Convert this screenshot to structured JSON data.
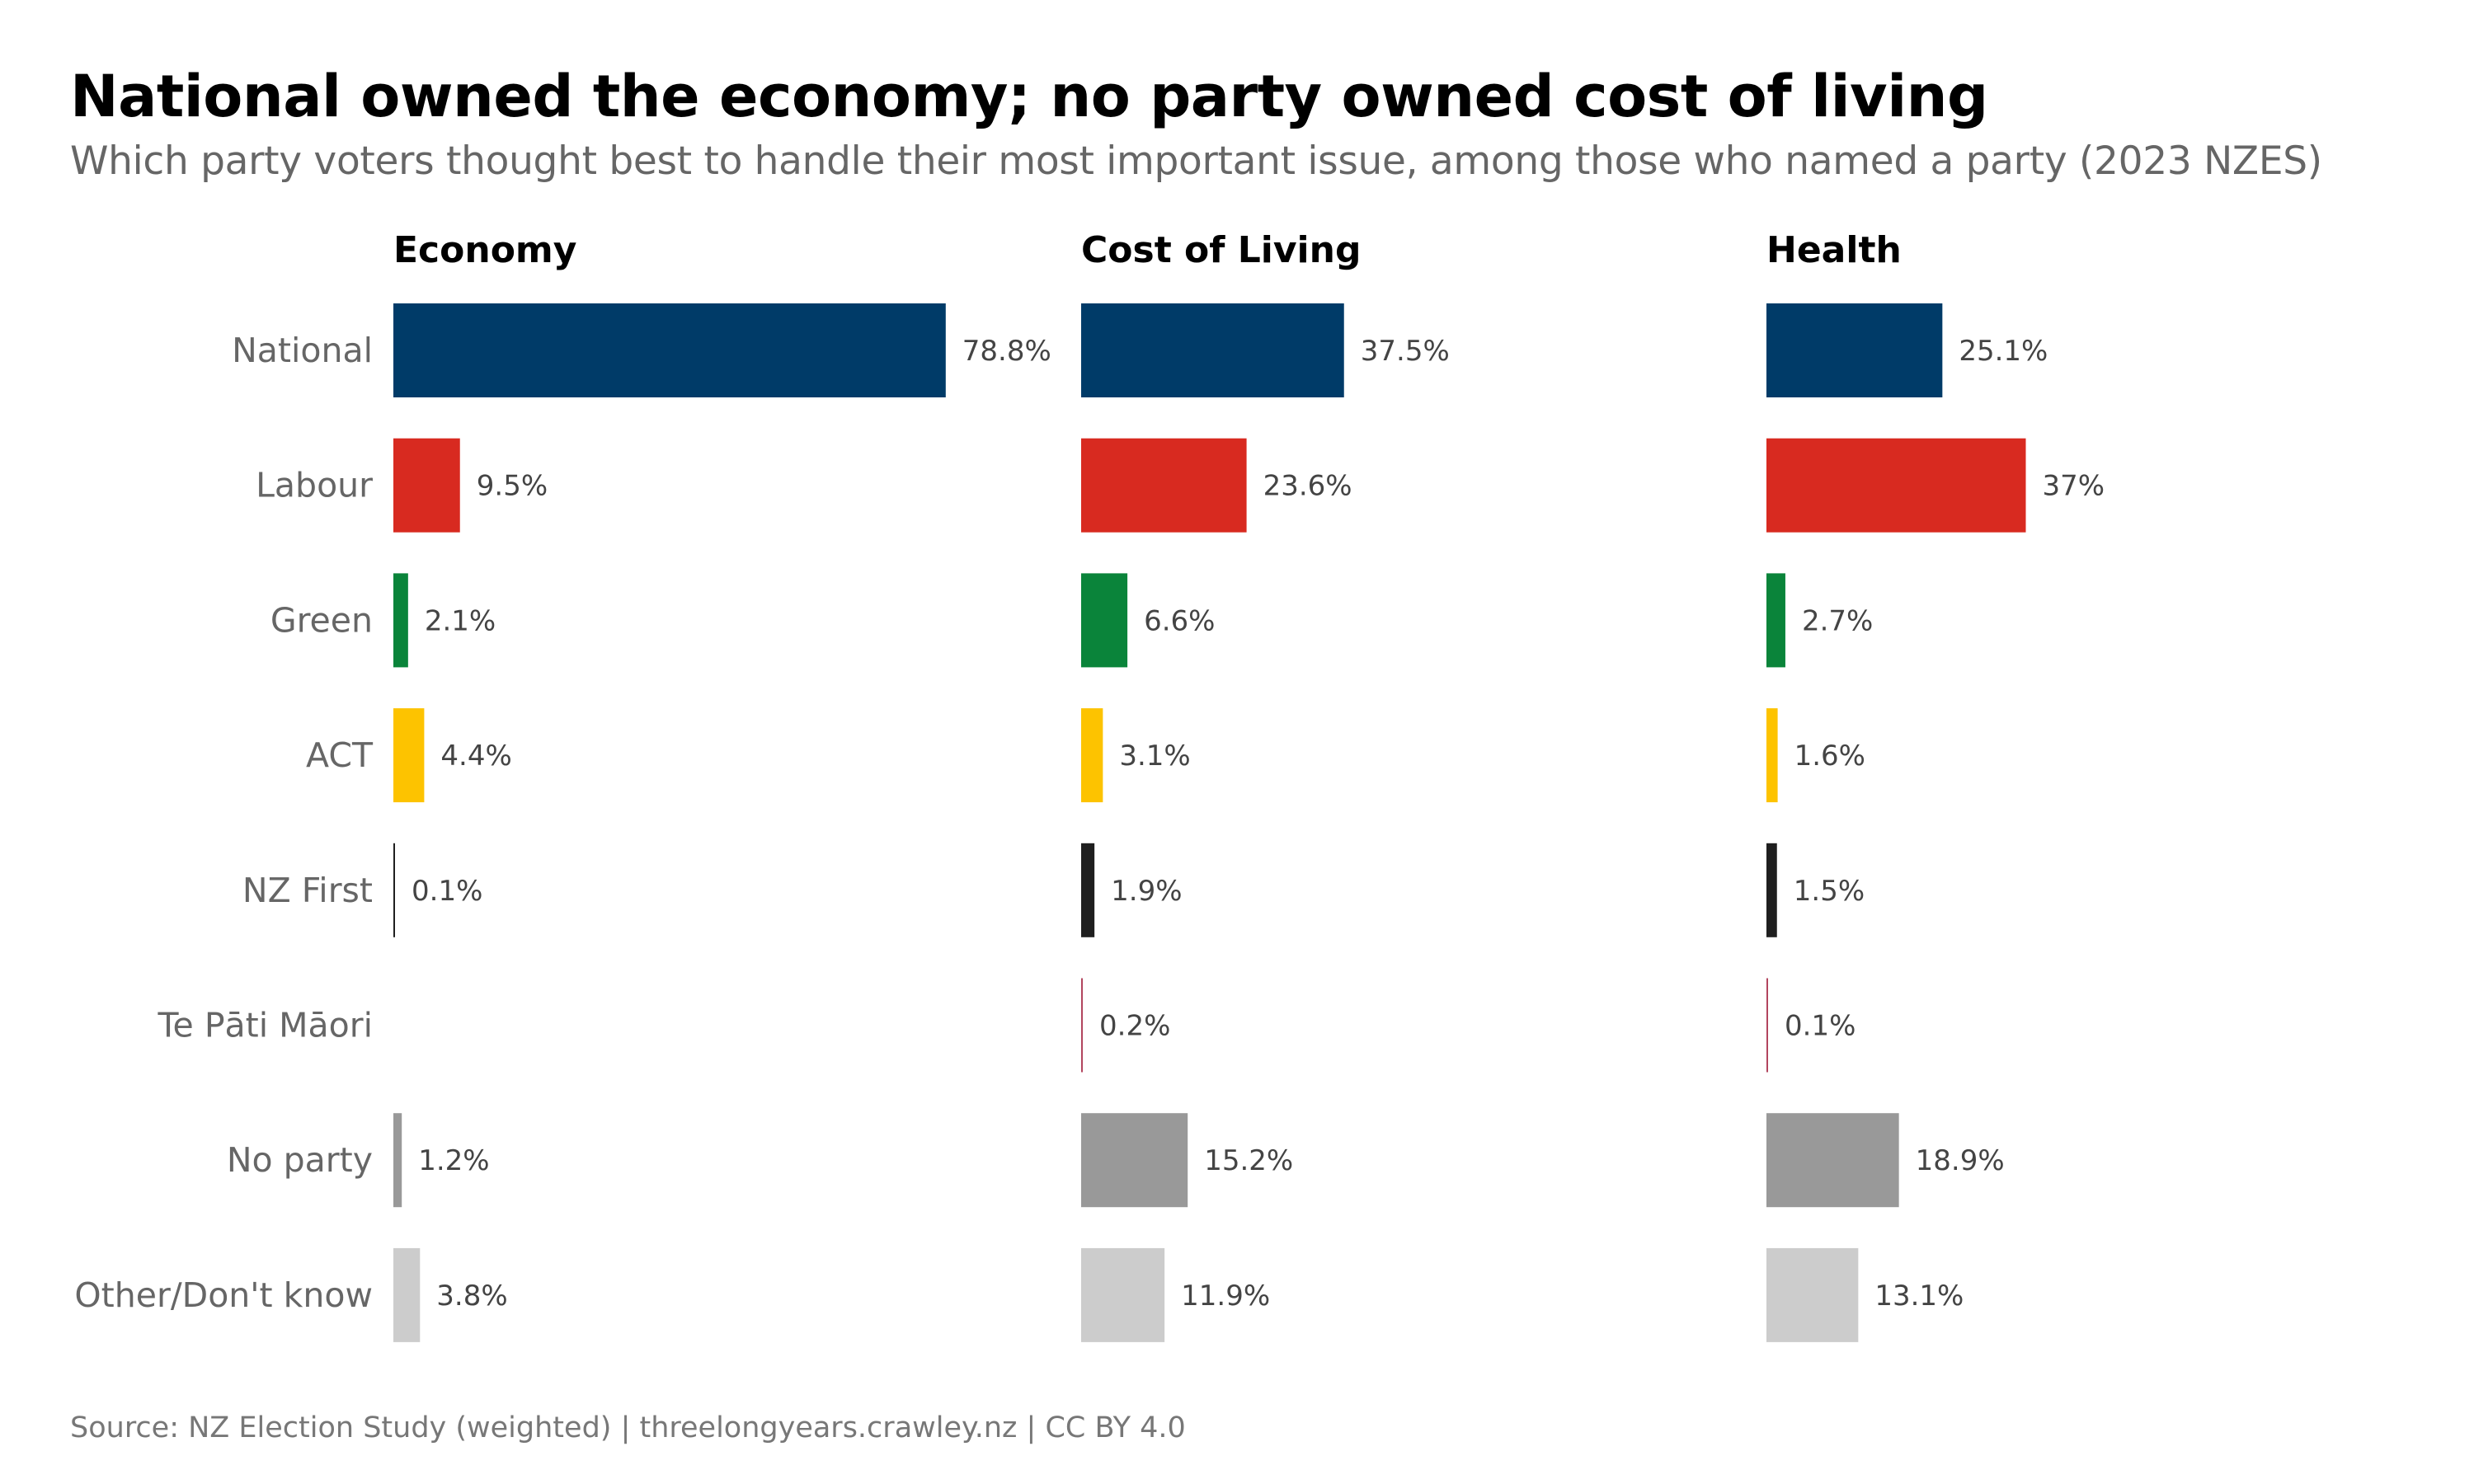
{
  "title": "National owned the economy; no party owned cost of living",
  "subtitle": "Which party voters thought best to handle their most important issue, among those who named a party (2023 NZES)",
  "source": "Source: NZ Election Study (weighted) | threelongyears.crawley.nz | CC BY 4.0",
  "chart_data": {
    "type": "bar",
    "orientation": "horizontal",
    "facets": [
      "Economy",
      "Cost of Living",
      "Health"
    ],
    "categories": [
      "National",
      "Labour",
      "Green",
      "ACT",
      "NZ First",
      "Te Pāti Māori",
      "No party",
      "Other/Don't know"
    ],
    "colors": [
      "#003b68",
      "#d82a20",
      "#0a843a",
      "#fdc300",
      "#1f1f1f",
      "#b2455e",
      "#999999",
      "#cccccc"
    ],
    "series": [
      {
        "name": "Economy",
        "values": [
          78.8,
          9.5,
          2.1,
          4.4,
          0.1,
          null,
          1.2,
          3.8
        ],
        "labels": [
          "78.8%",
          "9.5%",
          "2.1%",
          "4.4%",
          "0.1%",
          "",
          "1.2%",
          "3.8%"
        ]
      },
      {
        "name": "Cost of Living",
        "values": [
          37.5,
          23.6,
          6.6,
          3.1,
          1.9,
          0.2,
          15.2,
          11.9
        ],
        "labels": [
          "37.5%",
          "23.6%",
          "6.6%",
          "3.1%",
          "1.9%",
          "0.2%",
          "15.2%",
          "11.9%"
        ]
      },
      {
        "name": "Health",
        "values": [
          25.1,
          37,
          2.7,
          1.6,
          1.5,
          0.1,
          18.9,
          13.1
        ],
        "labels": [
          "25.1%",
          "37%",
          "2.7%",
          "1.6%",
          "1.5%",
          "0.1%",
          "18.9%",
          "13.1%"
        ]
      }
    ],
    "unit": "%",
    "grid": false,
    "legend": "none"
  }
}
